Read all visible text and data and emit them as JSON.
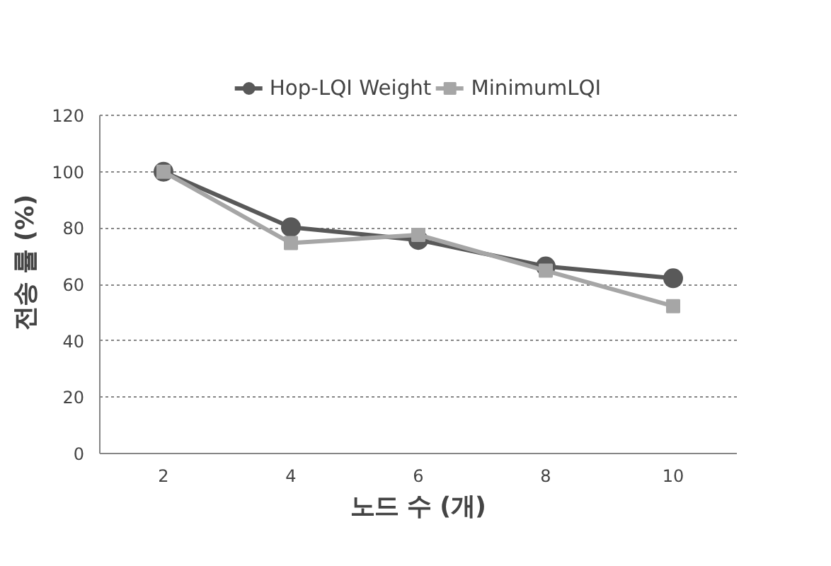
{
  "chart_data": {
    "type": "line",
    "xlabel": "노드 수 (개)",
    "ylabel": "전송 률 (%)",
    "categories": [
      "2",
      "4",
      "6",
      "8",
      "10"
    ],
    "series": [
      {
        "name": "Hop-LQI Weight",
        "color": "#595959",
        "marker": "circle",
        "values": [
          100,
          80.3,
          75.8,
          66.4,
          62.2
        ]
      },
      {
        "name": "MinimumLQI",
        "color": "#a6a6a6",
        "marker": "square",
        "values": [
          100,
          74.7,
          77.6,
          64.9,
          52.3
        ]
      }
    ],
    "ylim": [
      0,
      120
    ],
    "yticks": [
      0,
      20,
      40,
      60,
      80,
      100,
      120
    ],
    "grid": "y",
    "legend": "top",
    "line_style": "solid"
  }
}
